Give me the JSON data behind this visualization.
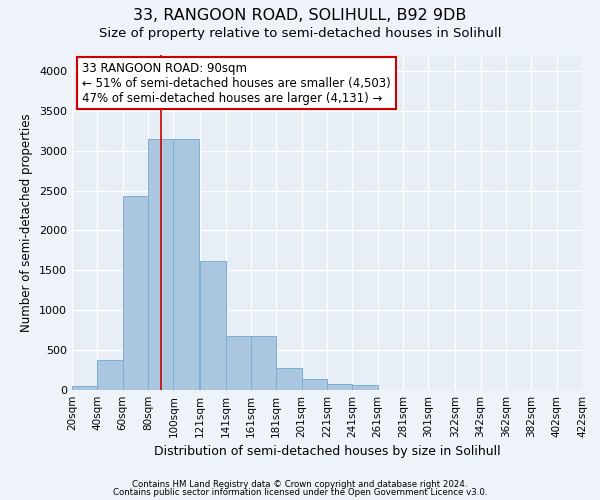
{
  "title": "33, RANGOON ROAD, SOLIHULL, B92 9DB",
  "subtitle": "Size of property relative to semi-detached houses in Solihull",
  "xlabel": "Distribution of semi-detached houses by size in Solihull",
  "ylabel": "Number of semi-detached properties",
  "footnote1": "Contains HM Land Registry data © Crown copyright and database right 2024.",
  "footnote2": "Contains public sector information licensed under the Open Government Licence v3.0.",
  "property_size": 90,
  "annotation_line1": "33 RANGOON ROAD: 90sqm",
  "annotation_line2": "← 51% of semi-detached houses are smaller (4,503)",
  "annotation_line3": "47% of semi-detached houses are larger (4,131) →",
  "bar_color": "#abc7e0",
  "bar_edge_color": "#7bafd4",
  "bar_left_edges": [
    20,
    40,
    60,
    80,
    100,
    121,
    141,
    161,
    181,
    201,
    221,
    241,
    261,
    281,
    301,
    322,
    342,
    362,
    382,
    402
  ],
  "bar_widths": [
    20,
    20,
    20,
    20,
    20,
    20,
    20,
    20,
    20,
    20,
    20,
    20,
    20,
    20,
    20,
    20,
    20,
    20,
    20,
    20
  ],
  "bar_heights": [
    50,
    370,
    2430,
    3150,
    3150,
    1620,
    680,
    680,
    280,
    140,
    80,
    60,
    0,
    0,
    0,
    0,
    0,
    0,
    0,
    0
  ],
  "tick_labels": [
    "20sqm",
    "40sqm",
    "60sqm",
    "80sqm",
    "100sqm",
    "121sqm",
    "141sqm",
    "161sqm",
    "181sqm",
    "201sqm",
    "221sqm",
    "241sqm",
    "261sqm",
    "281sqm",
    "301sqm",
    "322sqm",
    "342sqm",
    "362sqm",
    "382sqm",
    "402sqm",
    "422sqm"
  ],
  "ylim": [
    0,
    4200
  ],
  "yticks": [
    0,
    500,
    1000,
    1500,
    2000,
    2500,
    3000,
    3500,
    4000
  ],
  "background_color": "#eef3f9",
  "plot_bg_color": "#e8eef5",
  "grid_color": "#ffffff",
  "red_line_x": 90,
  "annotation_box_color": "#ffffff",
  "annotation_box_edge": "#cc0000",
  "title_fontsize": 11.5,
  "subtitle_fontsize": 9.5,
  "annotation_fontsize": 8.5
}
